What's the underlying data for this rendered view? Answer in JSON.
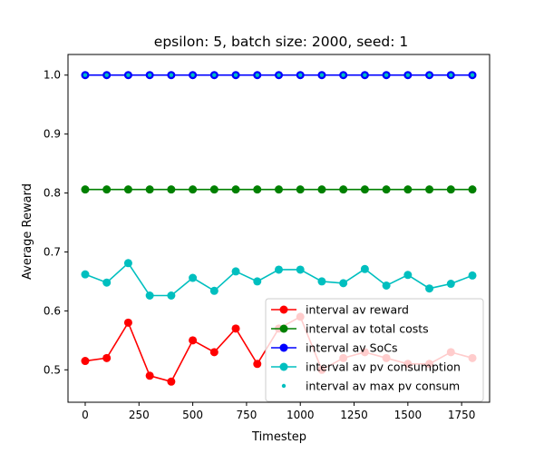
{
  "chart_data": {
    "type": "line",
    "title": "epsilon: 5, batch size: 2000, seed: 1",
    "xlabel": "Timestep",
    "ylabel": "Average Reward",
    "xlim": [
      -80,
      1880
    ],
    "ylim": [
      0.445,
      1.035
    ],
    "x_ticks": [
      0,
      250,
      500,
      750,
      1000,
      1250,
      1500,
      1750
    ],
    "y_ticks": [
      0.5,
      0.6,
      0.7,
      0.8,
      0.9,
      1.0
    ],
    "x_tick_labels": [
      "0",
      "250",
      "500",
      "750",
      "1000",
      "1250",
      "1500",
      "1750"
    ],
    "y_tick_labels": [
      "0.5",
      "0.6",
      "0.7",
      "0.8",
      "0.9",
      "1.0"
    ],
    "grid": false,
    "legend_position": "lower-right",
    "x": [
      0,
      100,
      200,
      300,
      400,
      500,
      600,
      700,
      800,
      900,
      1000,
      1100,
      1200,
      1300,
      1400,
      1500,
      1600,
      1700,
      1800
    ],
    "series": [
      {
        "name": "interval av reward",
        "color": "#ff0000",
        "style": "line-marker",
        "values": [
          0.515,
          0.52,
          0.58,
          0.49,
          0.48,
          0.55,
          0.53,
          0.57,
          0.51,
          0.57,
          0.59,
          0.5,
          0.52,
          0.53,
          0.52,
          0.51,
          0.51,
          0.53,
          0.52
        ]
      },
      {
        "name": "interval av total costs",
        "color": "#008000",
        "style": "line-marker",
        "values": [
          0.806,
          0.806,
          0.806,
          0.806,
          0.806,
          0.806,
          0.806,
          0.806,
          0.806,
          0.806,
          0.806,
          0.806,
          0.806,
          0.806,
          0.806,
          0.806,
          0.806,
          0.806,
          0.806
        ]
      },
      {
        "name": "interval av SoCs",
        "color": "#0000ff",
        "style": "line-marker",
        "values": [
          1.0,
          1.0,
          1.0,
          1.0,
          1.0,
          1.0,
          1.0,
          1.0,
          1.0,
          1.0,
          1.0,
          1.0,
          1.0,
          1.0,
          1.0,
          1.0,
          1.0,
          1.0,
          1.0
        ]
      },
      {
        "name": "interval av pv consumption",
        "color": "#00bfbf",
        "style": "line-marker",
        "values": [
          0.662,
          0.648,
          0.681,
          0.626,
          0.626,
          0.656,
          0.634,
          0.667,
          0.65,
          0.67,
          0.67,
          0.65,
          0.647,
          0.671,
          0.643,
          0.661,
          0.638,
          0.646,
          0.66
        ]
      },
      {
        "name": "interval av max pv consum",
        "color": "#00bfbf",
        "style": "scatter",
        "values": [
          1.0,
          1.0,
          1.0,
          1.0,
          1.0,
          1.0,
          1.0,
          1.0,
          1.0,
          1.0,
          1.0,
          1.0,
          1.0,
          1.0,
          1.0,
          1.0,
          1.0,
          1.0,
          1.0
        ]
      }
    ]
  }
}
